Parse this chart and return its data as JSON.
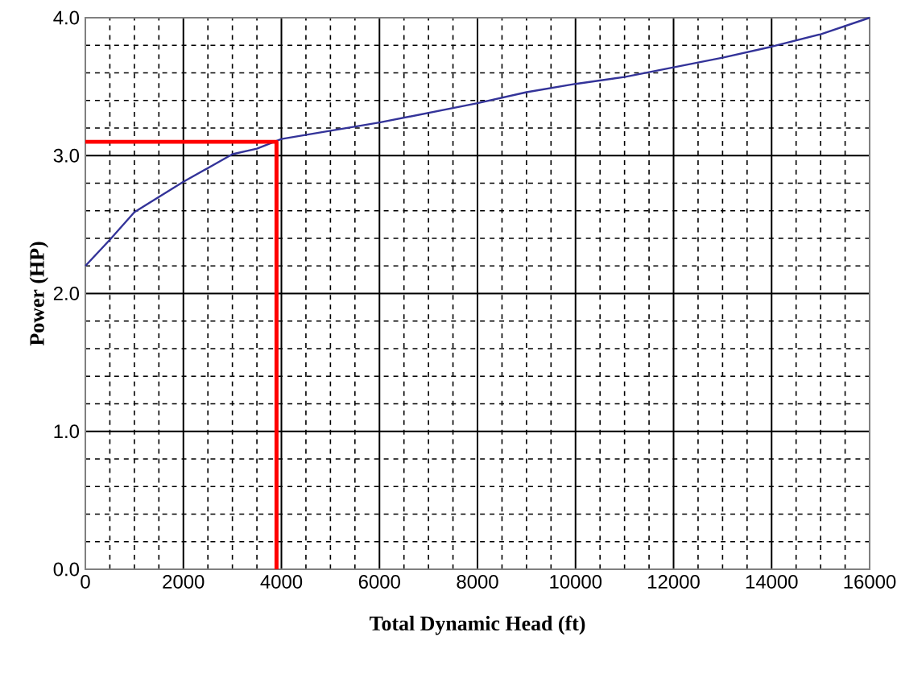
{
  "chart_data": {
    "type": "line",
    "xlabel": "Total Dynamic Head (ft)",
    "ylabel": "Power (HP)",
    "xlim": [
      0,
      16000
    ],
    "ylim": [
      0,
      4.0
    ],
    "xticks": [
      0,
      2000,
      4000,
      6000,
      8000,
      10000,
      12000,
      14000,
      16000
    ],
    "yticks": [
      {
        "value": 0,
        "label": "0.0"
      },
      {
        "value": 1,
        "label": "1.0"
      },
      {
        "value": 2,
        "label": "2.0"
      },
      {
        "value": 3,
        "label": "3.0"
      },
      {
        "value": 4,
        "label": "4.0"
      }
    ],
    "grid": true,
    "series": [
      {
        "color": "#333399",
        "x": [
          0,
          500,
          1000,
          2000,
          3000,
          3500,
          4000,
          5000,
          6000,
          8000,
          9000,
          10000,
          11000,
          12000,
          13000,
          14000,
          15000,
          16000
        ],
        "values": [
          2.2,
          2.39,
          2.59,
          2.81,
          3.01,
          3.05,
          3.12,
          3.18,
          3.24,
          3.38,
          3.46,
          3.52,
          3.57,
          3.64,
          3.71,
          3.79,
          3.88,
          4.0
        ]
      },
      {
        "color": "#ff0000",
        "x": [
          0,
          3900,
          3900
        ],
        "values": [
          3.1,
          3.1,
          0
        ]
      }
    ]
  }
}
